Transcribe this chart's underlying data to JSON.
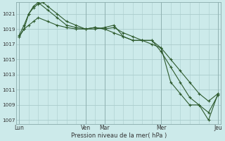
{
  "title": "Pression niveau de la mer( hPa )",
  "bg_color": "#cceaea",
  "grid_color": "#aacccc",
  "line_color": "#2d5a2d",
  "ylim": [
    1006.5,
    1022.5
  ],
  "yticks": [
    1007,
    1009,
    1011,
    1013,
    1015,
    1017,
    1019,
    1021
  ],
  "day_labels": [
    "Lun",
    "Ven",
    "Mar",
    "Mer",
    "Jeu"
  ],
  "day_positions": [
    0,
    7,
    9,
    15,
    21
  ],
  "num_points": 22,
  "line1_x": [
    0,
    0.5,
    1.0,
    1.5,
    2.0,
    2.5,
    3.0,
    4.0,
    5.0,
    6.0,
    7.0,
    8.0,
    9.0,
    10.0,
    11.0,
    12.0,
    13.0,
    14.0,
    15.0,
    16.0,
    17.0,
    18.0,
    19.0,
    20.0,
    21.0
  ],
  "line1_y": [
    1018.2,
    1019.5,
    1021.0,
    1021.8,
    1022.3,
    1022.5,
    1022.0,
    1021.0,
    1020.0,
    1019.5,
    1019.0,
    1019.2,
    1019.0,
    1018.5,
    1018.0,
    1017.5,
    1017.5,
    1017.5,
    1016.5,
    1015.0,
    1013.5,
    1012.0,
    1010.5,
    1009.5,
    1010.5
  ],
  "line2_x": [
    0,
    0.5,
    1.0,
    1.5,
    2.0,
    3.0,
    4.0,
    5.0,
    6.0,
    7.0,
    8.0,
    9.0,
    10.0,
    11.0,
    12.0,
    13.0,
    14.0,
    15.0,
    16.0,
    17.0,
    18.0,
    19.0,
    20.0,
    21.0
  ],
  "line2_y": [
    1018.0,
    1019.0,
    1019.5,
    1020.0,
    1020.5,
    1020.0,
    1019.5,
    1019.2,
    1019.0,
    1019.0,
    1019.2,
    1019.0,
    1019.2,
    1018.5,
    1018.0,
    1017.5,
    1017.5,
    1016.0,
    1014.0,
    1012.0,
    1010.0,
    1009.0,
    1008.0,
    1010.3
  ],
  "line3_x": [
    0,
    0.5,
    1.0,
    1.5,
    2.0,
    3.0,
    4.0,
    5.0,
    6.0,
    7.0,
    8.0,
    9.0,
    10.0,
    11.0,
    12.0,
    13.0,
    14.0,
    15.0,
    16.0,
    17.0,
    18.0,
    19.0,
    20.0,
    21.0
  ],
  "line3_y": [
    1018.0,
    1019.0,
    1021.0,
    1022.0,
    1022.5,
    1021.5,
    1020.5,
    1019.5,
    1019.2,
    1019.0,
    1019.0,
    1019.2,
    1019.5,
    1018.0,
    1017.5,
    1017.5,
    1017.0,
    1016.5,
    1012.0,
    1010.5,
    1009.0,
    1009.0,
    1007.0,
    1010.5
  ]
}
